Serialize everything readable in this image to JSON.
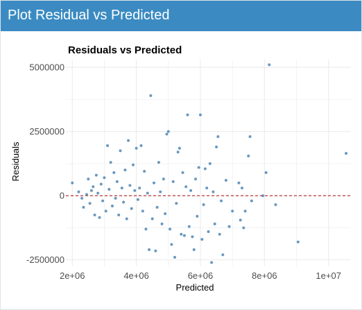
{
  "panel": {
    "title": "Plot Residual vs Predicted"
  },
  "colors": {
    "header": "#3b8bc2",
    "points": "#4f86b3",
    "zero_line": "#b22222",
    "grid": "#ebebeb"
  },
  "chart_data": {
    "type": "scatter",
    "title": "Residuals vs Predicted",
    "xlabel": "Predicted",
    "ylabel": "Residuals",
    "xlim": [
      1800000,
      10700000
    ],
    "ylim": [
      -2750000,
      5300000
    ],
    "x_ticks": [
      {
        "value": 2000000,
        "label": "2e+06"
      },
      {
        "value": 4000000,
        "label": "4e+06"
      },
      {
        "value": 6000000,
        "label": "6e+06"
      },
      {
        "value": 8000000,
        "label": "8e+06"
      },
      {
        "value": 10000000,
        "label": "1e+07"
      }
    ],
    "y_ticks": [
      {
        "value": -2500000,
        "label": "-2500000"
      },
      {
        "value": 0,
        "label": "0"
      },
      {
        "value": 2500000,
        "label": "2500000"
      },
      {
        "value": 5000000,
        "label": "5000000"
      }
    ],
    "reference_line": {
      "y": 0,
      "style": "dashed"
    },
    "grid": true,
    "points": [
      {
        "x": 2000000,
        "y": 500000
      },
      {
        "x": 2200000,
        "y": 150000
      },
      {
        "x": 2300000,
        "y": -100000
      },
      {
        "x": 2350000,
        "y": -450000
      },
      {
        "x": 2450000,
        "y": 50000
      },
      {
        "x": 2500000,
        "y": 650000
      },
      {
        "x": 2550000,
        "y": -300000
      },
      {
        "x": 2600000,
        "y": 200000
      },
      {
        "x": 2650000,
        "y": 350000
      },
      {
        "x": 2700000,
        "y": -750000
      },
      {
        "x": 2750000,
        "y": 800000
      },
      {
        "x": 2800000,
        "y": 100000
      },
      {
        "x": 2850000,
        "y": -850000
      },
      {
        "x": 2900000,
        "y": 450000
      },
      {
        "x": 2950000,
        "y": -200000
      },
      {
        "x": 3000000,
        "y": 700000
      },
      {
        "x": 3050000,
        "y": -600000
      },
      {
        "x": 3100000,
        "y": 1950000
      },
      {
        "x": 3150000,
        "y": 250000
      },
      {
        "x": 3200000,
        "y": 1300000
      },
      {
        "x": 3250000,
        "y": -400000
      },
      {
        "x": 3300000,
        "y": 900000
      },
      {
        "x": 3350000,
        "y": -100000
      },
      {
        "x": 3400000,
        "y": 550000
      },
      {
        "x": 3450000,
        "y": -750000
      },
      {
        "x": 3500000,
        "y": 1750000
      },
      {
        "x": 3550000,
        "y": 300000
      },
      {
        "x": 3600000,
        "y": -250000
      },
      {
        "x": 3650000,
        "y": 1000000
      },
      {
        "x": 3700000,
        "y": -900000
      },
      {
        "x": 3750000,
        "y": 2150000
      },
      {
        "x": 3800000,
        "y": 400000
      },
      {
        "x": 3850000,
        "y": -500000
      },
      {
        "x": 3900000,
        "y": 1200000
      },
      {
        "x": 3950000,
        "y": 200000
      },
      {
        "x": 4000000,
        "y": 1850000
      },
      {
        "x": 4050000,
        "y": -150000
      },
      {
        "x": 4100000,
        "y": 300000
      },
      {
        "x": 4150000,
        "y": 1950000
      },
      {
        "x": 4200000,
        "y": -600000
      },
      {
        "x": 4250000,
        "y": 950000
      },
      {
        "x": 4300000,
        "y": -1300000
      },
      {
        "x": 4350000,
        "y": 100000
      },
      {
        "x": 4400000,
        "y": -2100000
      },
      {
        "x": 4450000,
        "y": 3900000
      },
      {
        "x": 4500000,
        "y": -900000
      },
      {
        "x": 4550000,
        "y": 500000
      },
      {
        "x": 4600000,
        "y": -2150000
      },
      {
        "x": 4650000,
        "y": -450000
      },
      {
        "x": 4700000,
        "y": 1300000
      },
      {
        "x": 4750000,
        "y": 150000
      },
      {
        "x": 4800000,
        "y": -1100000
      },
      {
        "x": 4850000,
        "y": 650000
      },
      {
        "x": 4900000,
        "y": -700000
      },
      {
        "x": 4950000,
        "y": 2400000
      },
      {
        "x": 5000000,
        "y": 2500000
      },
      {
        "x": 5050000,
        "y": -1300000
      },
      {
        "x": 5100000,
        "y": -1900000
      },
      {
        "x": 5150000,
        "y": 550000
      },
      {
        "x": 5200000,
        "y": -2400000
      },
      {
        "x": 5250000,
        "y": -300000
      },
      {
        "x": 5300000,
        "y": 1700000
      },
      {
        "x": 5350000,
        "y": 1850000
      },
      {
        "x": 5400000,
        "y": -1500000
      },
      {
        "x": 5450000,
        "y": 900000
      },
      {
        "x": 5500000,
        "y": -1550000
      },
      {
        "x": 5550000,
        "y": 350000
      },
      {
        "x": 5600000,
        "y": 3150000
      },
      {
        "x": 5650000,
        "y": -1200000
      },
      {
        "x": 5700000,
        "y": 200000
      },
      {
        "x": 5750000,
        "y": -1600000
      },
      {
        "x": 5800000,
        "y": -2100000
      },
      {
        "x": 5850000,
        "y": 650000
      },
      {
        "x": 5900000,
        "y": -800000
      },
      {
        "x": 5950000,
        "y": 1100000
      },
      {
        "x": 6000000,
        "y": 3150000
      },
      {
        "x": 6050000,
        "y": -1700000
      },
      {
        "x": 6100000,
        "y": -350000
      },
      {
        "x": 6150000,
        "y": 1050000
      },
      {
        "x": 6200000,
        "y": 300000
      },
      {
        "x": 6250000,
        "y": -1400000
      },
      {
        "x": 6300000,
        "y": 1250000
      },
      {
        "x": 6350000,
        "y": -2600000
      },
      {
        "x": 6400000,
        "y": 150000
      },
      {
        "x": 6450000,
        "y": -1100000
      },
      {
        "x": 6500000,
        "y": 1900000
      },
      {
        "x": 6550000,
        "y": 2300000
      },
      {
        "x": 6600000,
        "y": -1500000
      },
      {
        "x": 6650000,
        "y": -200000
      },
      {
        "x": 6700000,
        "y": -2300000
      },
      {
        "x": 6800000,
        "y": 600000
      },
      {
        "x": 6900000,
        "y": -1200000
      },
      {
        "x": 7000000,
        "y": -600000
      },
      {
        "x": 7200000,
        "y": 500000
      },
      {
        "x": 7250000,
        "y": -950000
      },
      {
        "x": 7300000,
        "y": 300000
      },
      {
        "x": 7350000,
        "y": -1250000
      },
      {
        "x": 7400000,
        "y": -600000
      },
      {
        "x": 7500000,
        "y": 1550000
      },
      {
        "x": 7550000,
        "y": 2300000
      },
      {
        "x": 7600000,
        "y": -200000
      },
      {
        "x": 7950000,
        "y": 0
      },
      {
        "x": 8050000,
        "y": 900000
      },
      {
        "x": 8150000,
        "y": 5100000
      },
      {
        "x": 8350000,
        "y": -350000
      },
      {
        "x": 9050000,
        "y": -1800000
      },
      {
        "x": 10550000,
        "y": 1650000
      }
    ]
  }
}
